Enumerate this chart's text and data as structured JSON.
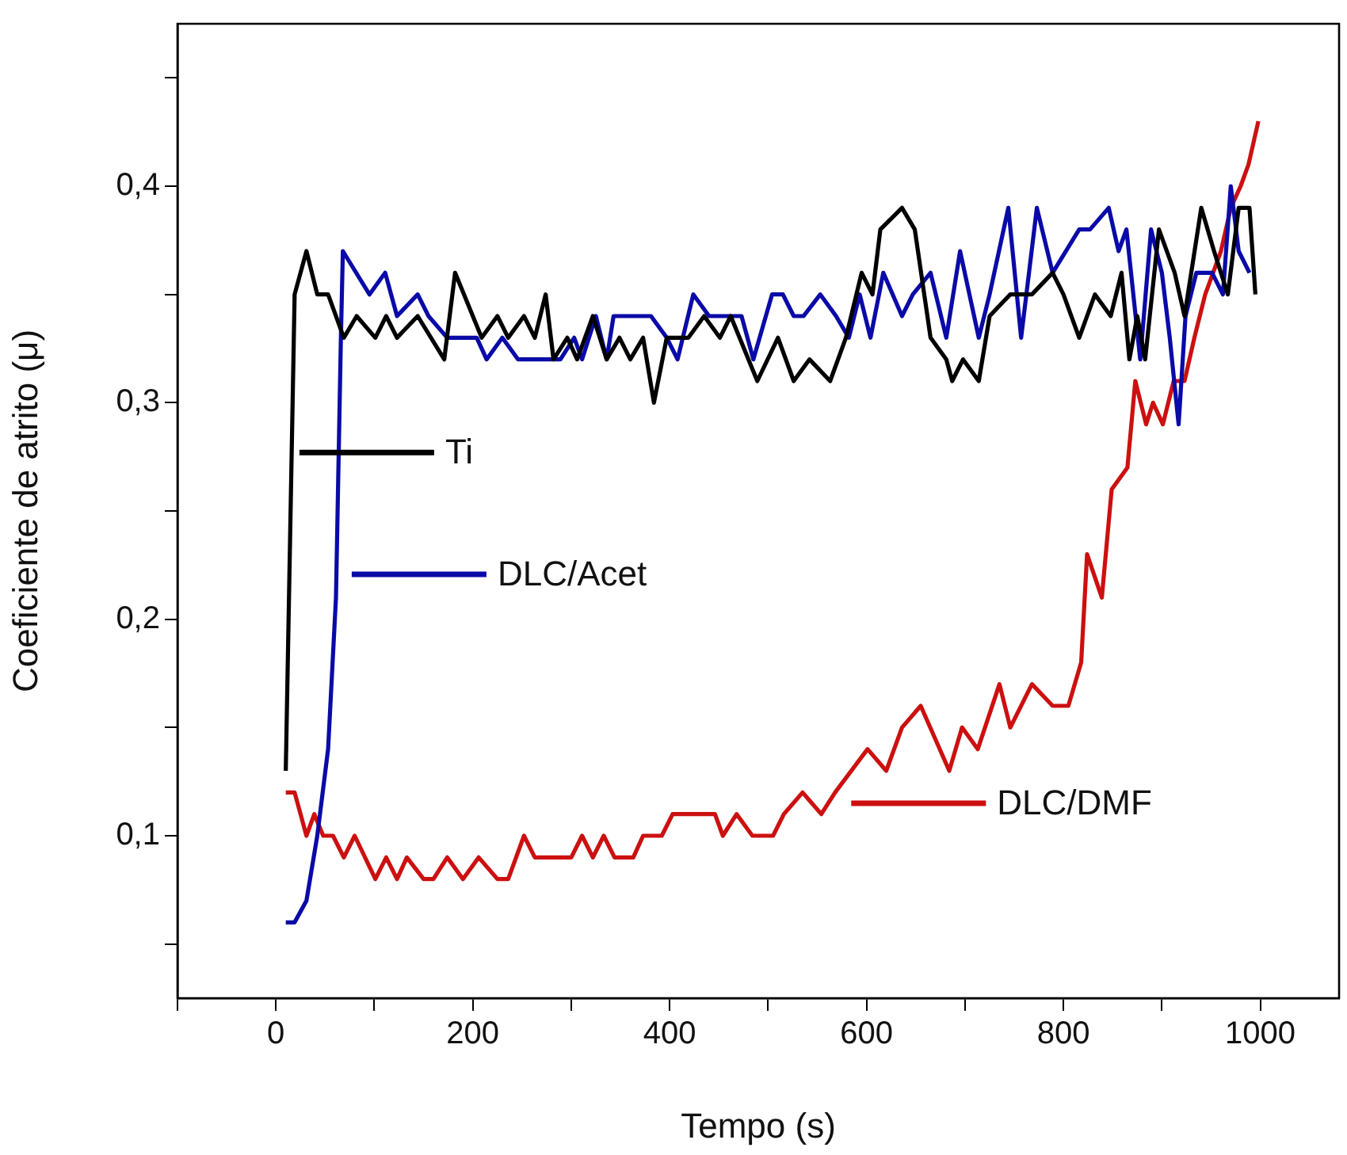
{
  "chart_data": {
    "type": "line",
    "xlabel": "Tempo (s)",
    "ylabel": "Coeficiente de atrito (μ)",
    "xlim": [
      -100,
      1080
    ],
    "ylim": [
      0.025,
      0.475
    ],
    "xticks": [
      {
        "value": -100,
        "label": null
      },
      0,
      {
        "value": 100,
        "label": null
      },
      200,
      {
        "value": 300,
        "label": null
      },
      400,
      {
        "value": 500,
        "label": null
      },
      600,
      {
        "value": 700,
        "label": null
      },
      800,
      {
        "value": 900,
        "label": null
      },
      1000
    ],
    "yticks": [
      {
        "value": 0.05,
        "label": null
      },
      {
        "value": 0.1,
        "label": "0,1"
      },
      {
        "value": 0.15,
        "label": null
      },
      {
        "value": 0.2,
        "label": "0,2"
      },
      {
        "value": 0.25,
        "label": null
      },
      {
        "value": 0.3,
        "label": "0,3"
      },
      {
        "value": 0.35,
        "label": null
      },
      {
        "value": 0.4,
        "label": "0,4"
      },
      {
        "value": 0.45,
        "label": null
      }
    ],
    "grid": false,
    "legend": "left",
    "marker": "none",
    "line_style": "solid",
    "series": [
      {
        "name": "Ti",
        "color": "#000000",
        "x": [
          10,
          19,
          31,
          42,
          53,
          69,
          82,
          101,
          112,
          123,
          144,
          171,
          182,
          209,
          225,
          236,
          252,
          263,
          274,
          282,
          296,
          306,
          322,
          336,
          349,
          360,
          373,
          384,
          397,
          419,
          435,
          451,
          462,
          489,
          510,
          526,
          542,
          563,
          579,
          595,
          606,
          614,
          636,
          649,
          665,
          681,
          687,
          698,
          714,
          725,
          746,
          768,
          789,
          800,
          816,
          832,
          848,
          859,
          867,
          875,
          883,
          897,
          913,
          923,
          940,
          953,
          967,
          978,
          989,
          995
        ],
        "values": [
          0.13,
          0.35,
          0.37,
          0.35,
          0.35,
          0.33,
          0.34,
          0.33,
          0.34,
          0.33,
          0.34,
          0.32,
          0.36,
          0.33,
          0.34,
          0.33,
          0.34,
          0.33,
          0.35,
          0.32,
          0.33,
          0.32,
          0.34,
          0.32,
          0.33,
          0.32,
          0.33,
          0.3,
          0.33,
          0.33,
          0.34,
          0.33,
          0.34,
          0.31,
          0.33,
          0.31,
          0.32,
          0.31,
          0.33,
          0.36,
          0.35,
          0.38,
          0.39,
          0.38,
          0.33,
          0.32,
          0.31,
          0.32,
          0.31,
          0.34,
          0.35,
          0.35,
          0.36,
          0.35,
          0.33,
          0.35,
          0.34,
          0.36,
          0.32,
          0.34,
          0.32,
          0.38,
          0.36,
          0.34,
          0.39,
          0.37,
          0.35,
          0.39,
          0.39,
          0.35
        ]
      },
      {
        "name": "DLC/Acet",
        "color": "#0a0aa8",
        "x": [
          10,
          19,
          31,
          42,
          53,
          61,
          66,
          68,
          95,
          111,
          123,
          144,
          155,
          174,
          204,
          214,
          230,
          246,
          289,
          303,
          311,
          325,
          336,
          343,
          381,
          397,
          408,
          424,
          440,
          473,
          485,
          504,
          515,
          526,
          536,
          553,
          569,
          582,
          593,
          604,
          617,
          636,
          647,
          665,
          681,
          695,
          714,
          725,
          744,
          757,
          773,
          789,
          816,
          827,
          846,
          856,
          864,
          878,
          889,
          900,
          908,
          917,
          924,
          935,
          951,
          962,
          970,
          978,
          989
        ],
        "values": [
          0.06,
          0.06,
          0.07,
          0.1,
          0.14,
          0.21,
          0.33,
          0.37,
          0.35,
          0.36,
          0.34,
          0.35,
          0.34,
          0.33,
          0.33,
          0.32,
          0.33,
          0.32,
          0.32,
          0.33,
          0.32,
          0.34,
          0.32,
          0.34,
          0.34,
          0.33,
          0.32,
          0.35,
          0.34,
          0.34,
          0.32,
          0.35,
          0.35,
          0.34,
          0.34,
          0.35,
          0.34,
          0.33,
          0.35,
          0.33,
          0.36,
          0.34,
          0.35,
          0.36,
          0.33,
          0.37,
          0.33,
          0.35,
          0.39,
          0.33,
          0.39,
          0.36,
          0.38,
          0.38,
          0.39,
          0.37,
          0.38,
          0.32,
          0.38,
          0.36,
          0.33,
          0.29,
          0.34,
          0.36,
          0.36,
          0.35,
          0.4,
          0.37,
          0.36
        ]
      },
      {
        "name": "DLC/DMF",
        "color": "#cc1010",
        "x": [
          10,
          19,
          31,
          39,
          48,
          58,
          69,
          80,
          101,
          112,
          123,
          133,
          150,
          160,
          174,
          190,
          206,
          225,
          236,
          252,
          263,
          300,
          311,
          322,
          333,
          344,
          363,
          373,
          392,
          403,
          446,
          454,
          468,
          484,
          505,
          516,
          535,
          554,
          568,
          601,
          620,
          636,
          655,
          684,
          697,
          713,
          735,
          746,
          768,
          789,
          805,
          818,
          824,
          839,
          849,
          865,
          873,
          884,
          891,
          901,
          912,
          923,
          933,
          944,
          960,
          970,
          980,
          988,
          998
        ],
        "values": [
          0.12,
          0.12,
          0.1,
          0.11,
          0.1,
          0.1,
          0.09,
          0.1,
          0.08,
          0.09,
          0.08,
          0.09,
          0.08,
          0.08,
          0.09,
          0.08,
          0.09,
          0.08,
          0.08,
          0.1,
          0.09,
          0.09,
          0.1,
          0.09,
          0.1,
          0.09,
          0.09,
          0.1,
          0.1,
          0.11,
          0.11,
          0.1,
          0.11,
          0.1,
          0.1,
          0.11,
          0.12,
          0.11,
          0.12,
          0.14,
          0.13,
          0.15,
          0.16,
          0.13,
          0.15,
          0.14,
          0.17,
          0.15,
          0.17,
          0.16,
          0.16,
          0.18,
          0.23,
          0.21,
          0.26,
          0.27,
          0.31,
          0.29,
          0.3,
          0.29,
          0.31,
          0.31,
          0.33,
          0.35,
          0.37,
          0.39,
          0.4,
          0.41,
          0.43
        ]
      }
    ]
  }
}
